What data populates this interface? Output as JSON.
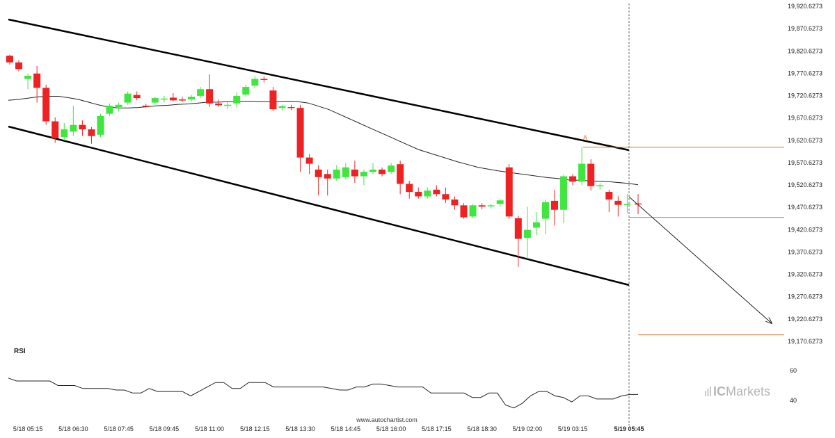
{
  "chart_data": {
    "type": "candlestick",
    "indicator_label": "RSI",
    "watermark": "ICMarkets",
    "watermark_parts": [
      "IC",
      "Markets"
    ],
    "site": "www.autochartist.com",
    "y_ticks": [
      "19,920.6273",
      "19,870.6273",
      "19,820.6273",
      "19,770.6273",
      "19,720.6273",
      "19,670.6273",
      "19,620.6273",
      "19,570.6273",
      "19,520.6273",
      "19,470.6273",
      "19,420.6273",
      "19,370.6273",
      "19,320.6273",
      "19,270.6273",
      "19,220.6273",
      "19,170.6273"
    ],
    "y_tick_values": [
      19920.6273,
      19870.6273,
      19820.6273,
      19770.6273,
      19720.6273,
      19670.6273,
      19620.6273,
      19570.6273,
      19520.6273,
      19470.6273,
      19420.6273,
      19370.6273,
      19320.6273,
      19270.6273,
      19220.6273,
      19170.6273
    ],
    "rsi_ticks": [
      "60",
      "40"
    ],
    "rsi_tick_values": [
      60,
      40
    ],
    "x_labels": [
      "5/18 05:15",
      "5/18 06:30",
      "5/18 07:45",
      "5/18 09:45",
      "5/18 11:00",
      "5/18 12:15",
      "5/18 13:30",
      "5/18 14:45",
      "5/18 16:00",
      "5/18 17:15",
      "5/18 18:30",
      "5/19 02:00",
      "5/19 03:15",
      "5/19 05:45"
    ],
    "x_label_index": [
      2,
      7,
      12,
      17,
      22,
      27,
      32,
      37,
      42,
      47,
      52,
      57,
      62,
      68
    ],
    "colors": {
      "up": "#3ee63e",
      "down": "#ee2222",
      "channel": "#000000",
      "ma": "#222222",
      "target": "#e07020",
      "arrow": "#222222",
      "vline": "#444444"
    },
    "candles": [
      {
        "o": 19810,
        "h": 19812,
        "l": 19790,
        "c": 19795
      },
      {
        "o": 19795,
        "h": 19800,
        "l": 19775,
        "c": 19780
      },
      {
        "o": 19758,
        "h": 19770,
        "l": 19735,
        "c": 19765
      },
      {
        "o": 19770,
        "h": 19787,
        "l": 19705,
        "c": 19738
      },
      {
        "o": 19738,
        "h": 19745,
        "l": 19655,
        "c": 19663
      },
      {
        "o": 19663,
        "h": 19672,
        "l": 19615,
        "c": 19625
      },
      {
        "o": 19628,
        "h": 19660,
        "l": 19620,
        "c": 19645
      },
      {
        "o": 19640,
        "h": 19698,
        "l": 19630,
        "c": 19655
      },
      {
        "o": 19655,
        "h": 19665,
        "l": 19630,
        "c": 19645
      },
      {
        "o": 19645,
        "h": 19650,
        "l": 19613,
        "c": 19630
      },
      {
        "o": 19633,
        "h": 19680,
        "l": 19628,
        "c": 19675
      },
      {
        "o": 19680,
        "h": 19703,
        "l": 19675,
        "c": 19698
      },
      {
        "o": 19695,
        "h": 19705,
        "l": 19685,
        "c": 19700
      },
      {
        "o": 19705,
        "h": 19730,
        "l": 19700,
        "c": 19725
      },
      {
        "o": 19722,
        "h": 19730,
        "l": 19710,
        "c": 19715
      },
      {
        "o": 19698,
        "h": 19702,
        "l": 19694,
        "c": 19697
      },
      {
        "o": 19705,
        "h": 19718,
        "l": 19700,
        "c": 19715
      },
      {
        "o": 19712,
        "h": 19720,
        "l": 19705,
        "c": 19714
      },
      {
        "o": 19716,
        "h": 19726,
        "l": 19708,
        "c": 19710
      },
      {
        "o": 19712,
        "h": 19718,
        "l": 19706,
        "c": 19710
      },
      {
        "o": 19712,
        "h": 19722,
        "l": 19707,
        "c": 19718
      },
      {
        "o": 19720,
        "h": 19740,
        "l": 19715,
        "c": 19735
      },
      {
        "o": 19735,
        "h": 19768,
        "l": 19695,
        "c": 19703
      },
      {
        "o": 19703,
        "h": 19712,
        "l": 19696,
        "c": 19699
      },
      {
        "o": 19698,
        "h": 19706,
        "l": 19690,
        "c": 19700
      },
      {
        "o": 19703,
        "h": 19728,
        "l": 19694,
        "c": 19720
      },
      {
        "o": 19723,
        "h": 19745,
        "l": 19718,
        "c": 19740
      },
      {
        "o": 19743,
        "h": 19765,
        "l": 19737,
        "c": 19758
      },
      {
        "o": 19758,
        "h": 19764,
        "l": 19750,
        "c": 19757
      },
      {
        "o": 19732,
        "h": 19740,
        "l": 19686,
        "c": 19690
      },
      {
        "o": 19693,
        "h": 19700,
        "l": 19686,
        "c": 19697
      },
      {
        "o": 19695,
        "h": 19700,
        "l": 19688,
        "c": 19693
      },
      {
        "o": 19693,
        "h": 19700,
        "l": 19550,
        "c": 19582
      },
      {
        "o": 19582,
        "h": 19590,
        "l": 19545,
        "c": 19568
      },
      {
        "o": 19555,
        "h": 19565,
        "l": 19497,
        "c": 19538
      },
      {
        "o": 19545,
        "h": 19555,
        "l": 19497,
        "c": 19535
      },
      {
        "o": 19535,
        "h": 19565,
        "l": 19530,
        "c": 19555
      },
      {
        "o": 19538,
        "h": 19570,
        "l": 19533,
        "c": 19560
      },
      {
        "o": 19555,
        "h": 19575,
        "l": 19525,
        "c": 19540
      },
      {
        "o": 19540,
        "h": 19555,
        "l": 19520,
        "c": 19550
      },
      {
        "o": 19550,
        "h": 19570,
        "l": 19545,
        "c": 19555
      },
      {
        "o": 19555,
        "h": 19560,
        "l": 19540,
        "c": 19545
      },
      {
        "o": 19550,
        "h": 19570,
        "l": 19545,
        "c": 19564
      },
      {
        "o": 19567,
        "h": 19575,
        "l": 19500,
        "c": 19523
      },
      {
        "o": 19523,
        "h": 19530,
        "l": 19490,
        "c": 19505
      },
      {
        "o": 19505,
        "h": 19515,
        "l": 19490,
        "c": 19495
      },
      {
        "o": 19495,
        "h": 19515,
        "l": 19490,
        "c": 19508
      },
      {
        "o": 19510,
        "h": 19520,
        "l": 19495,
        "c": 19500
      },
      {
        "o": 19500,
        "h": 19515,
        "l": 19480,
        "c": 19488
      },
      {
        "o": 19488,
        "h": 19495,
        "l": 19465,
        "c": 19475
      },
      {
        "o": 19475,
        "h": 19480,
        "l": 19445,
        "c": 19448
      },
      {
        "o": 19450,
        "h": 19478,
        "l": 19446,
        "c": 19475
      },
      {
        "o": 19475,
        "h": 19480,
        "l": 19466,
        "c": 19472
      },
      {
        "o": 19474,
        "h": 19478,
        "l": 19468,
        "c": 19475
      },
      {
        "o": 19478,
        "h": 19490,
        "l": 19472,
        "c": 19486
      },
      {
        "o": 19560,
        "h": 19567,
        "l": 19445,
        "c": 19450
      },
      {
        "o": 19446,
        "h": 19452,
        "l": 19337,
        "c": 19400
      },
      {
        "o": 19402,
        "h": 19472,
        "l": 19355,
        "c": 19420
      },
      {
        "o": 19425,
        "h": 19460,
        "l": 19408,
        "c": 19437
      },
      {
        "o": 19445,
        "h": 19488,
        "l": 19410,
        "c": 19482
      },
      {
        "o": 19485,
        "h": 19510,
        "l": 19430,
        "c": 19465
      },
      {
        "o": 19465,
        "h": 19544,
        "l": 19435,
        "c": 19540
      },
      {
        "o": 19540,
        "h": 19545,
        "l": 19520,
        "c": 19528
      },
      {
        "o": 19528,
        "h": 19605,
        "l": 19520,
        "c": 19568
      },
      {
        "o": 19568,
        "h": 19578,
        "l": 19508,
        "c": 19518
      },
      {
        "o": 19518,
        "h": 19525,
        "l": 19510,
        "c": 19520
      },
      {
        "o": 19505,
        "h": 19510,
        "l": 19460,
        "c": 19488
      },
      {
        "o": 19485,
        "h": 19495,
        "l": 19450,
        "c": 19476
      },
      {
        "o": 19478,
        "h": 19500,
        "l": 19458,
        "c": 19478
      }
    ],
    "moving_average": [
      19710,
      19712,
      19715,
      19718,
      19719,
      19719,
      19716,
      19712,
      19706,
      19700,
      19695,
      19693,
      19693,
      19694,
      19696,
      19698,
      19699,
      19701,
      19702,
      19704,
      19706,
      19706,
      19707,
      19708,
      19708,
      19707,
      19707,
      19707,
      19708,
      19707,
      19704,
      19697,
      19690,
      19680,
      19670,
      19660,
      19650,
      19640,
      19630,
      19620,
      19610,
      19600,
      19593,
      19586,
      19579,
      19572,
      19566,
      19560,
      19556,
      19552,
      19549,
      19546,
      19543,
      19540,
      19537,
      19535,
      19532,
      19531,
      19530,
      19529,
      19528,
      19526,
      19524,
      19521
    ],
    "rsi": [
      55,
      53,
      53,
      53,
      53,
      53,
      50,
      50,
      50,
      48,
      48,
      48,
      48,
      47,
      47,
      45,
      45,
      48,
      46,
      46,
      46,
      46,
      43,
      46,
      49,
      52,
      52,
      48,
      48,
      52,
      52,
      52,
      49,
      49,
      49,
      49,
      49,
      49,
      49,
      48,
      47,
      47,
      49,
      49,
      51,
      51,
      50,
      49,
      49,
      49,
      49,
      45,
      45,
      45,
      45,
      45,
      42,
      42,
      45,
      45,
      37,
      35,
      38,
      43,
      46,
      46,
      43,
      42,
      39,
      43,
      43,
      41,
      41,
      41,
      43,
      44,
      44
    ]
  },
  "annotations": {
    "target_level": 19185,
    "upper_level": 19605,
    "lower_level": 19448,
    "marker_label": "A"
  }
}
